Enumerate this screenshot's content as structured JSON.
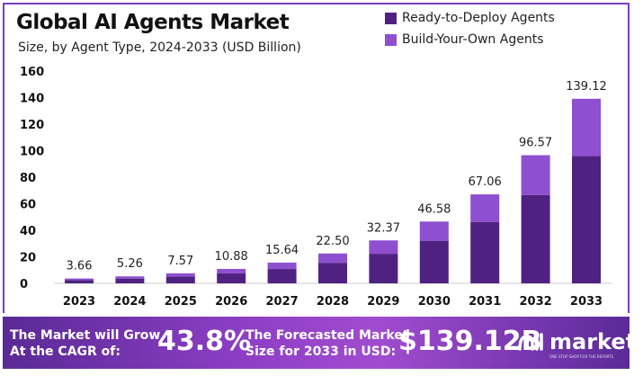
{
  "chart_data": {
    "type": "bar",
    "stacked": true,
    "title": "Global AI Agents Market",
    "subtitle": "Size, by Agent Type, 2024-2033 (USD Billion)",
    "categories": [
      "2023",
      "2024",
      "2025",
      "2026",
      "2027",
      "2028",
      "2029",
      "2030",
      "2031",
      "2032",
      "2033"
    ],
    "series": [
      {
        "name": "Ready-to-Deploy Agents",
        "color": "#4f2282",
        "values": [
          2.5,
          3.6,
          5.2,
          7.5,
          10.8,
          15.5,
          22.3,
          32.1,
          46.3,
          66.6,
          96.0
        ]
      },
      {
        "name": "Build-Your-Own Agents",
        "color": "#8e4fd0",
        "values": [
          1.16,
          1.66,
          2.37,
          3.38,
          4.84,
          7.0,
          10.07,
          14.48,
          20.76,
          29.97,
          43.12
        ]
      }
    ],
    "totals": [
      "3.66",
      "5.26",
      "7.57",
      "10.88",
      "15.64",
      "22.50",
      "32.37",
      "46.58",
      "67.06",
      "96.57",
      "139.12"
    ],
    "yticks": [
      "0",
      "20",
      "40",
      "60",
      "80",
      "100",
      "120",
      "140",
      "160"
    ],
    "ylim": [
      0,
      160
    ],
    "grid": false,
    "legend": "top-right"
  },
  "banner": {
    "cagr_label_1": "The Market will Grow",
    "cagr_label_2": "At the CAGR of:",
    "cagr_value": "43.8%",
    "forecast_label_1": "The Forecasted Market",
    "forecast_label_2": "Size for 2033 in USD:",
    "forecast_value": "$139.12B",
    "logo_text": "market.us",
    "logo_tagline": "ONE STOP SHOP FOR THE REPORTS"
  }
}
